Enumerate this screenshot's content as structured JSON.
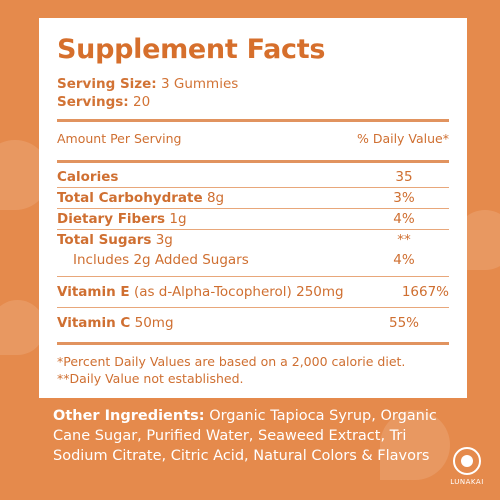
{
  "colors": {
    "background": "#e58a4c",
    "panel": "#ffffff",
    "accent": "#d66f2c"
  },
  "facts": {
    "title": "Supplement Facts",
    "serving_size_label": "Serving Size:",
    "serving_size_value": "3 Gummies",
    "servings_label": "Servings:",
    "servings_value": "20",
    "amount_header": "Amount Per Serving",
    "dv_header": "% Daily Value*",
    "rows": [
      {
        "label": "Calories",
        "amount": "",
        "dv": "35"
      },
      {
        "label": "Total Carbohydrate",
        "amount": "8g",
        "dv": "3%"
      },
      {
        "label": "Dietary Fibers",
        "amount": "1g",
        "dv": "4%"
      },
      {
        "label": "Total Sugars",
        "amount": "3g",
        "dv": "**"
      },
      {
        "label": "Includes 2g Added Sugars",
        "amount": "",
        "dv": "4%"
      },
      {
        "label": "Vitamin E",
        "amount": "(as d-Alpha-Tocopherol)  250mg",
        "dv": "1667%"
      },
      {
        "label": "Vitamin C",
        "amount": "50mg",
        "dv": "55%"
      }
    ],
    "footnote1": "*Percent Daily Values are based on a 2,000 calorie diet.",
    "footnote2": "**Daily Value not established."
  },
  "other_ingredients": {
    "label": "Other Ingredients:",
    "text": "Organic Tapioca Syrup, Organic Cane Sugar, Purified Water, Seaweed Extract, Tri Sodium Citrate, Citric Acid, Natural Colors & Flavors"
  },
  "brand": {
    "name": "LUNAKAI",
    "icon": "moon-logo-icon"
  }
}
